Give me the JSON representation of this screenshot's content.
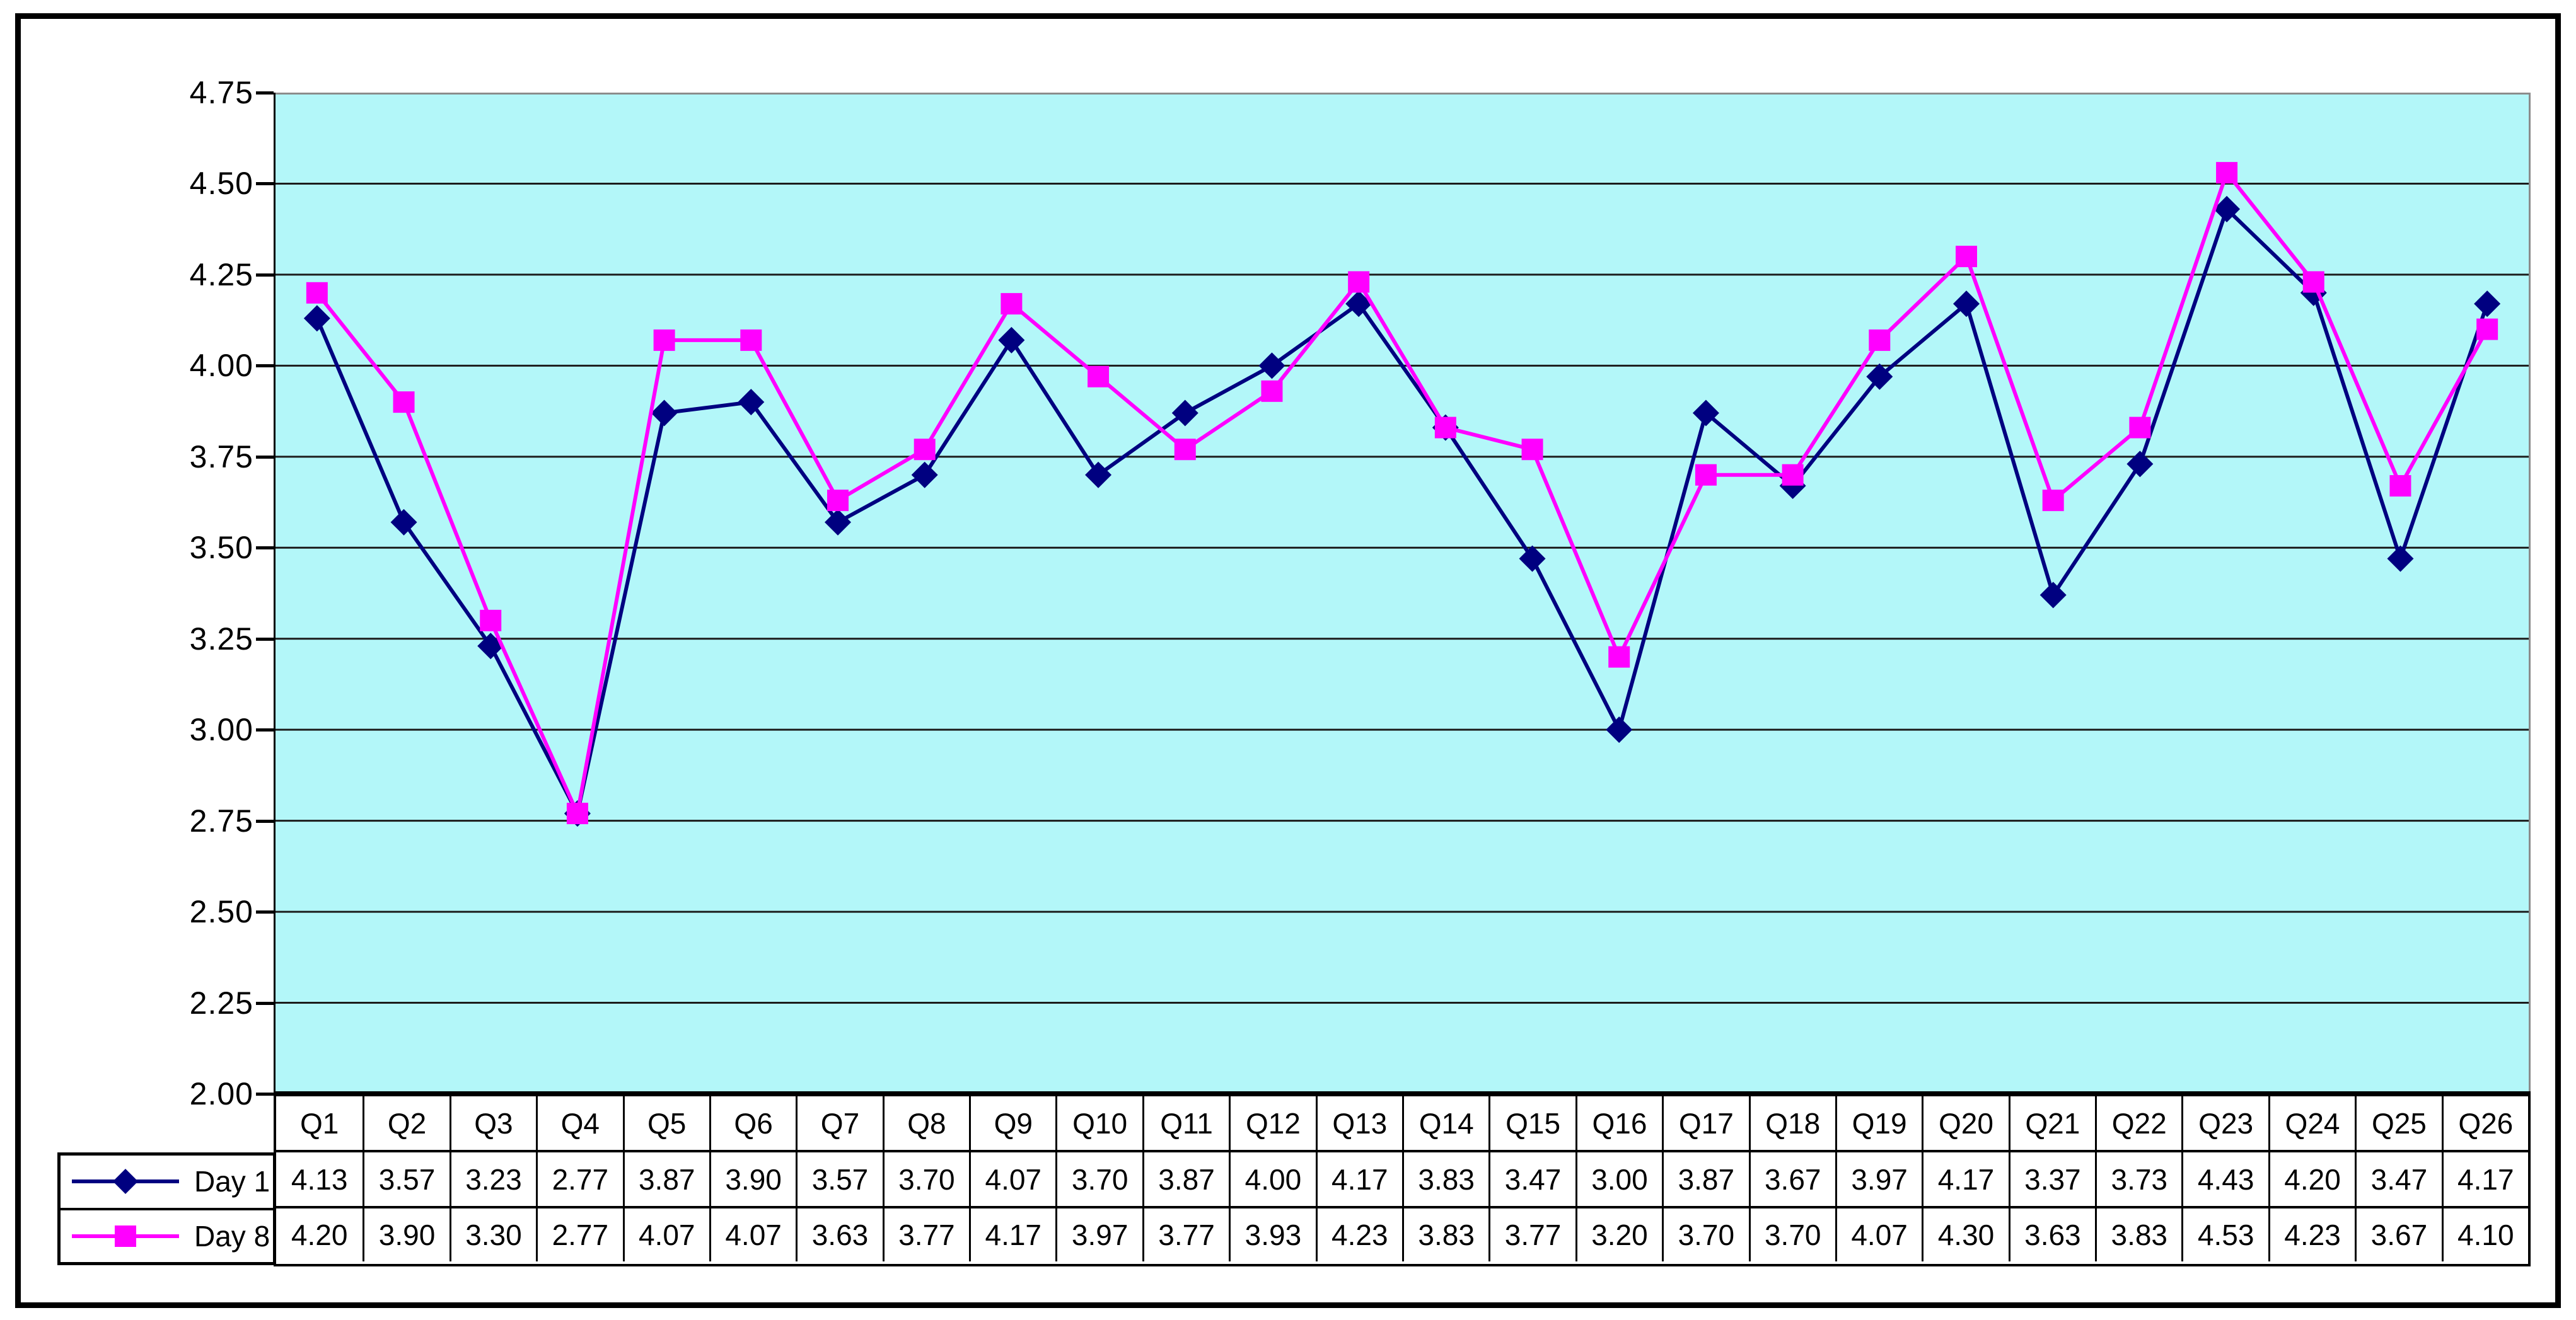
{
  "chart_data": {
    "type": "line",
    "title": "",
    "xlabel": "",
    "ylabel": "",
    "categories": [
      "Q1",
      "Q2",
      "Q3",
      "Q4",
      "Q5",
      "Q6",
      "Q7",
      "Q8",
      "Q9",
      "Q10",
      "Q11",
      "Q12",
      "Q13",
      "Q14",
      "Q15",
      "Q16",
      "Q17",
      "Q18",
      "Q19",
      "Q20",
      "Q21",
      "Q22",
      "Q23",
      "Q24",
      "Q25",
      "Q26"
    ],
    "series": [
      {
        "name": "Day 1",
        "color": "#000080",
        "marker": "diamond",
        "values": [
          4.13,
          3.57,
          3.23,
          2.77,
          3.87,
          3.9,
          3.57,
          3.7,
          4.07,
          3.7,
          3.87,
          4.0,
          4.17,
          3.83,
          3.47,
          3.0,
          3.87,
          3.67,
          3.97,
          4.17,
          3.37,
          3.73,
          4.43,
          4.2,
          3.47,
          4.17
        ]
      },
      {
        "name": "Day 8",
        "color": "#FF00FF",
        "marker": "square",
        "values": [
          4.2,
          3.9,
          3.3,
          2.77,
          4.07,
          4.07,
          3.63,
          3.77,
          4.17,
          3.97,
          3.77,
          3.93,
          4.23,
          3.83,
          3.77,
          3.2,
          3.7,
          3.7,
          4.07,
          4.3,
          3.63,
          3.83,
          4.53,
          4.23,
          3.67,
          4.1
        ]
      }
    ],
    "ylim": [
      2.0,
      4.75
    ],
    "ytick_step": 0.25,
    "yticks": [
      "4.75",
      "4.50",
      "4.25",
      "4.00",
      "3.75",
      "3.50",
      "3.25",
      "3.00",
      "2.75",
      "2.50",
      "2.25",
      "2.00"
    ],
    "grid": "horizontal-major",
    "legend_position": "table-left",
    "data_table_shown": true,
    "value_format_decimals": 2,
    "colors": {
      "plot_bg": "#B3F7F9",
      "gridline": "#1C1C1C",
      "plot_border": "#8C8C8C",
      "axis_line": "#000000",
      "table_border": "#000000",
      "frame_border": "#000000",
      "page_bg": "#FFFFFF",
      "text": "#000000"
    }
  }
}
